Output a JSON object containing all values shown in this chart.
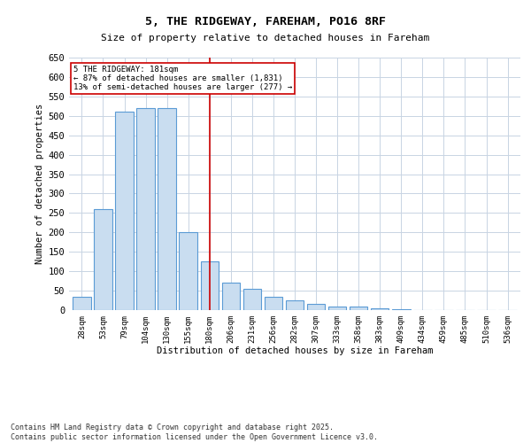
{
  "title_line1": "5, THE RIDGEWAY, FAREHAM, PO16 8RF",
  "title_line2": "Size of property relative to detached houses in Fareham",
  "xlabel": "Distribution of detached houses by size in Fareham",
  "ylabel": "Number of detached properties",
  "categories": [
    "28sqm",
    "53sqm",
    "79sqm",
    "104sqm",
    "130sqm",
    "155sqm",
    "180sqm",
    "206sqm",
    "231sqm",
    "256sqm",
    "282sqm",
    "307sqm",
    "333sqm",
    "358sqm",
    "383sqm",
    "409sqm",
    "434sqm",
    "459sqm",
    "485sqm",
    "510sqm",
    "536sqm"
  ],
  "values": [
    35,
    260,
    510,
    520,
    520,
    200,
    125,
    70,
    55,
    35,
    25,
    15,
    10,
    8,
    5,
    2,
    1,
    1,
    1,
    0,
    1
  ],
  "bar_color": "#c9ddf0",
  "bar_edge_color": "#5b9bd5",
  "highlight_bar_index": 6,
  "highlight_line_color": "#cc0000",
  "annotation_line1": "5 THE RIDGEWAY: 181sqm",
  "annotation_line2": "← 87% of detached houses are smaller (1,831)",
  "annotation_line3": "13% of semi-detached houses are larger (277) →",
  "annotation_box_color": "#cc0000",
  "ylim": [
    0,
    650
  ],
  "yticks": [
    0,
    50,
    100,
    150,
    200,
    250,
    300,
    350,
    400,
    450,
    500,
    550,
    600,
    650
  ],
  "background_color": "#ffffff",
  "grid_color": "#c8d4e3",
  "footer_line1": "Contains HM Land Registry data © Crown copyright and database right 2025.",
  "footer_line2": "Contains public sector information licensed under the Open Government Licence v3.0."
}
